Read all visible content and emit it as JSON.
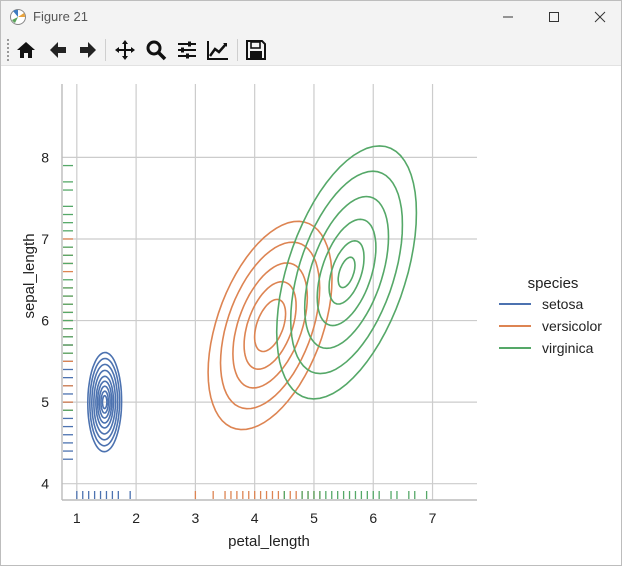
{
  "window": {
    "title": "Figure 21",
    "minimize_icon": "minimize-icon",
    "maximize_icon": "maximize-icon",
    "close_icon": "close-icon"
  },
  "toolbar": {
    "tools": [
      "home-icon",
      "back-arrow-icon",
      "forward-arrow-icon",
      "pan-icon",
      "zoom-icon",
      "subplots-icon",
      "customize-icon",
      "save-icon"
    ]
  },
  "colors": {
    "setosa": "#4c72b0",
    "versicolor": "#dd8452",
    "virginica": "#55a868",
    "grid": "#cccccc"
  },
  "chart_data": {
    "type": "kde-contour with rug",
    "xlabel": "petal_length",
    "ylabel": "sepal_length",
    "xlim": [
      0.75,
      7.75
    ],
    "ylim": [
      3.8,
      8.9
    ],
    "xticks": [
      "1",
      "2",
      "3",
      "4",
      "5",
      "6",
      "7"
    ],
    "yticks": [
      "4",
      "5",
      "6",
      "7",
      "8"
    ],
    "grid": true,
    "legend": {
      "title": "species",
      "placement": "right"
    },
    "series": [
      {
        "name": "setosa",
        "center": [
          1.47,
          5.0
        ],
        "spread": [
          0.15,
          0.32
        ],
        "tilt": 0.05,
        "levels": [
          1.0,
          0.88,
          0.76,
          0.64,
          0.52,
          0.42,
          0.32,
          0.22,
          0.13
        ],
        "rug_x": [
          1.0,
          1.1,
          1.2,
          1.3,
          1.4,
          1.5,
          1.6,
          1.7,
          1.9
        ],
        "rug_y": [
          4.3,
          4.4,
          4.5,
          4.6,
          4.7,
          4.8,
          4.9,
          5.0,
          5.1,
          5.2,
          5.3,
          5.4,
          5.5,
          5.7,
          5.8
        ]
      },
      {
        "name": "versicolor",
        "center": [
          4.26,
          5.94
        ],
        "spread": [
          0.55,
          0.6
        ],
        "tilt": 0.55,
        "levels": [
          1.0,
          0.8,
          0.6,
          0.42,
          0.25
        ],
        "rug_x": [
          3.0,
          3.3,
          3.5,
          3.6,
          3.7,
          3.8,
          3.9,
          4.0,
          4.1,
          4.2,
          4.3,
          4.4,
          4.5,
          4.6,
          4.7,
          4.8,
          4.9,
          5.0,
          5.1
        ],
        "rug_y": [
          4.9,
          5.0,
          5.2,
          5.5,
          5.6,
          5.7,
          5.8,
          5.9,
          6.0,
          6.1,
          6.2,
          6.3,
          6.4,
          6.6,
          6.7,
          6.8,
          6.9,
          7.0
        ]
      },
      {
        "name": "virginica",
        "center": [
          5.55,
          6.59
        ],
        "spread": [
          0.62,
          0.72
        ],
        "tilt": 0.62,
        "levels": [
          1.0,
          0.8,
          0.6,
          0.42,
          0.25,
          0.12
        ],
        "rug_x": [
          4.5,
          4.8,
          4.9,
          5.0,
          5.1,
          5.2,
          5.3,
          5.4,
          5.5,
          5.6,
          5.7,
          5.8,
          5.9,
          6.0,
          6.1,
          6.3,
          6.4,
          6.6,
          6.7,
          6.9
        ],
        "rug_y": [
          4.9,
          5.6,
          5.7,
          5.8,
          5.9,
          6.0,
          6.1,
          6.2,
          6.3,
          6.4,
          6.5,
          6.7,
          6.8,
          6.9,
          7.1,
          7.2,
          7.3,
          7.4,
          7.6,
          7.7,
          7.9
        ]
      }
    ]
  }
}
